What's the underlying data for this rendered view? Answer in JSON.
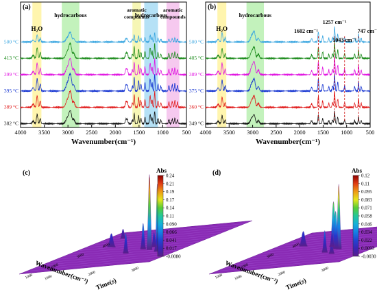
{
  "chart_data": [
    {
      "type": "line",
      "panel_label": "(a)",
      "xlabel": "Wavenumber(cm⁻¹)",
      "x_ticks": [
        4000,
        3500,
        3000,
        2500,
        2000,
        1500,
        1000,
        500
      ],
      "xlim": [
        4000,
        500
      ],
      "series": [
        {
          "name": "500 °C",
          "color": "#3aa6e0"
        },
        {
          "name": "413 °C",
          "color": "#1a8a1a"
        },
        {
          "name": "399 °C",
          "color": "#e010e0"
        },
        {
          "name": "395 °C",
          "color": "#1030d0"
        },
        {
          "name": "389 °C",
          "color": "#e01818"
        },
        {
          "name": "382 °C",
          "color": "#111111"
        }
      ],
      "annotations": [
        {
          "label": "H₂O",
          "range": [
            3750,
            3560
          ],
          "color": "#fff3a0"
        },
        {
          "label": "hydrocarbous",
          "range": [
            3130,
            2760
          ],
          "color": "#b8f0b0"
        },
        {
          "label": "aromatic compounds",
          "range": [
            1640,
            1460
          ],
          "color": "#f4f4a8"
        },
        {
          "label": "hydrocarbous",
          "range": [
            1390,
            1100
          ],
          "color": "#a8dcf4"
        },
        {
          "label": "aromatic compounds",
          "range": [
            920,
            650
          ],
          "color": "#f4c0ec"
        }
      ]
    },
    {
      "type": "line",
      "panel_label": "(b)",
      "xlabel": "Wavenumber(cm⁻¹)",
      "x_ticks": [
        4000,
        3500,
        3000,
        2500,
        2000,
        1500,
        1000,
        500
      ],
      "xlim": [
        4000,
        500
      ],
      "series": [
        {
          "name": "500 °C",
          "color": "#3aa6e0"
        },
        {
          "name": "405 °C",
          "color": "#1a8a1a"
        },
        {
          "name": "389 °C",
          "color": "#e010e0"
        },
        {
          "name": "375 °C",
          "color": "#1030d0"
        },
        {
          "name": "360 °C",
          "color": "#e01818"
        },
        {
          "name": "349 °C",
          "color": "#111111"
        }
      ],
      "annotations": [
        {
          "label": "H₂O",
          "range": [
            3750,
            3560
          ],
          "color": "#fff3a0"
        },
        {
          "label": "hydrocarbous",
          "range": [
            3130,
            2760
          ],
          "color": "#b8f0b0"
        }
      ],
      "peak_labels": [
        {
          "label": "1602 cm⁻¹",
          "x": 1602
        },
        {
          "label": "1257 cm⁻¹",
          "x": 1257
        },
        {
          "label": "1043 cm⁻¹",
          "x": 1043
        },
        {
          "label": "747 cm⁻¹",
          "x": 747
        }
      ]
    },
    {
      "type": "surface3d",
      "panel_label": "(c)",
      "xlabel": "Wavenumber(cm⁻¹)",
      "ylabel": "Time(s)",
      "colorbar_title": "Abs",
      "colorbar_ticks": [
        "0.24",
        "0.21",
        "0.19",
        "0.17",
        "0.14",
        "0.11",
        "0.090",
        "0.066",
        "0.041",
        "0.017",
        "-0.0080"
      ],
      "x_ticks": [
        "4000",
        "3000",
        "2000",
        "1000"
      ],
      "y_ticks": [
        "1000",
        "2000",
        "3000"
      ]
    },
    {
      "type": "surface3d",
      "panel_label": "(d)",
      "xlabel": "Wavenumber(cm⁻¹)",
      "ylabel": "Time(s)",
      "colorbar_title": "Abs",
      "colorbar_ticks": [
        "0.12",
        "0.11",
        "0.095",
        "0.083",
        "0.071",
        "0.058",
        "0.046",
        "0.034",
        "0.022",
        "0.0093",
        "-0.0030"
      ],
      "x_ticks": [
        "4000",
        "3000",
        "2000",
        "1000"
      ],
      "y_ticks": [
        "1000",
        "2000",
        "3000"
      ]
    }
  ]
}
